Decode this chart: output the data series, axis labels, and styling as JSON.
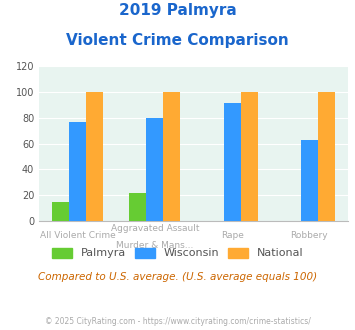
{
  "title_line1": "2019 Palmyra",
  "title_line2": "Violent Crime Comparison",
  "groups": [
    {
      "label_top": "All Violent Crime",
      "label_bot": "",
      "palmyra": 15,
      "wisconsin": 77,
      "national": 100
    },
    {
      "label_top": "Aggravated Assault",
      "label_bot": "Murder & Mans...",
      "palmyra": 22,
      "wisconsin": 80,
      "national": 100
    },
    {
      "label_top": "Rape",
      "label_bot": "",
      "palmyra": 0,
      "wisconsin": 91,
      "national": 100
    },
    {
      "label_top": "Robbery",
      "label_bot": "",
      "palmyra": 0,
      "wisconsin": 63,
      "national": 100
    }
  ],
  "color_palmyra": "#66cc33",
  "color_wisconsin": "#3399ff",
  "color_national": "#ffaa33",
  "color_title": "#1a66cc",
  "color_bg_chart": "#e8f4f0",
  "color_note": "#cc6600",
  "color_footer": "#aaaaaa",
  "color_xlabel": "#aaaaaa",
  "ylim": [
    0,
    120
  ],
  "yticks": [
    0,
    20,
    40,
    60,
    80,
    100,
    120
  ],
  "bar_width": 0.22,
  "legend_labels": [
    "Palmyra",
    "Wisconsin",
    "National"
  ],
  "note_text": "Compared to U.S. average. (U.S. average equals 100)",
  "footer_text": "© 2025 CityRating.com - https://www.cityrating.com/crime-statistics/"
}
